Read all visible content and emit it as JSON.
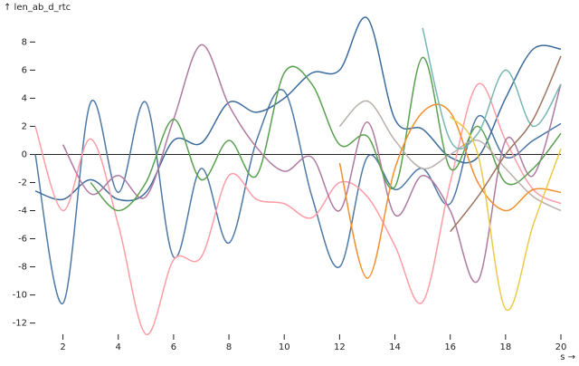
{
  "chart_data": {
    "type": "line",
    "y_label": "↑ len_ab_d_rtc",
    "x_label": "s →",
    "x": [
      1,
      2,
      3,
      4,
      5,
      6,
      7,
      8,
      9,
      10,
      11,
      12,
      13,
      14,
      15,
      16,
      17,
      18,
      19,
      20
    ],
    "xlim": [
      1,
      20
    ],
    "xticks": [
      2,
      4,
      6,
      8,
      10,
      12,
      14,
      16,
      18,
      20
    ],
    "ylim": [
      -12.8,
      9.7
    ],
    "yticks": [
      -12,
      -10,
      -8,
      -6,
      -4,
      -2,
      0,
      2,
      4,
      6,
      8
    ],
    "series": [
      {
        "color": "#4e79a7",
        "values": [
          0,
          -10.6,
          3.7,
          -2.7,
          3.7,
          -7.3,
          -1,
          -6.3,
          1,
          4.5,
          -3,
          -8,
          -0.2,
          -2.5,
          -1,
          -3.5,
          2.7,
          -0.2,
          1,
          2.2
        ]
      },
      {
        "color": "#3b6b9c",
        "values": [
          -2.6,
          -3.2,
          -1.8,
          -3.2,
          -2.7,
          1,
          0.8,
          3.7,
          3,
          4,
          5.8,
          6,
          9.7,
          2.5,
          1.8,
          -0.2,
          -0.2,
          4,
          7.5,
          7.5
        ]
      },
      {
        "color": "#ff9da7",
        "values": [
          2,
          -4,
          1.1,
          -5,
          -12.8,
          -7.5,
          -7.3,
          -1.5,
          -3.2,
          -3.5,
          -4.5,
          -2,
          -3,
          -6.5,
          -10.5,
          -2,
          5,
          1,
          -2.5,
          -3.5
        ]
      },
      {
        "color": "#af7aa1",
        "values": [
          null,
          0.7,
          -2.8,
          -1.5,
          -3,
          2.5,
          7.8,
          3.5,
          0.5,
          -1.2,
          -0.2,
          -4,
          2.3,
          -4.3,
          -1.5,
          -4,
          -9,
          1,
          -1.5,
          5
        ]
      },
      {
        "color": "#59a14f",
        "values": [
          null,
          null,
          -2,
          -4,
          -2,
          2.5,
          -1.8,
          1,
          -1.5,
          5.8,
          5,
          0.7,
          1.3,
          -2.3,
          6.9,
          -1,
          2,
          -2,
          -1,
          1.5
        ]
      },
      {
        "color": "#bab0ab",
        "values": [
          null,
          null,
          null,
          null,
          null,
          null,
          null,
          null,
          null,
          null,
          null,
          2,
          3.8,
          1,
          -1,
          0,
          1,
          -1,
          -3,
          -4
        ]
      },
      {
        "color": "#f28e2c",
        "values": [
          null,
          null,
          null,
          null,
          null,
          null,
          null,
          null,
          null,
          null,
          null,
          -0.6,
          -8.8,
          -1,
          3,
          3,
          -2,
          -4,
          -2.5,
          -2.7
        ]
      },
      {
        "color": "#76b7b2",
        "values": [
          null,
          null,
          null,
          null,
          null,
          null,
          null,
          null,
          null,
          null,
          null,
          null,
          null,
          null,
          9,
          1,
          1.5,
          6,
          2,
          5
        ]
      },
      {
        "color": "#edc949",
        "values": [
          null,
          null,
          null,
          null,
          null,
          null,
          null,
          null,
          null,
          null,
          null,
          null,
          null,
          null,
          null,
          2.7,
          0,
          -11,
          -5,
          0.4
        ]
      },
      {
        "color": "#9c755f",
        "values": [
          null,
          null,
          null,
          null,
          null,
          null,
          null,
          null,
          null,
          null,
          null,
          null,
          null,
          null,
          null,
          -5.5,
          -3,
          0,
          2.5,
          7
        ]
      }
    ]
  }
}
